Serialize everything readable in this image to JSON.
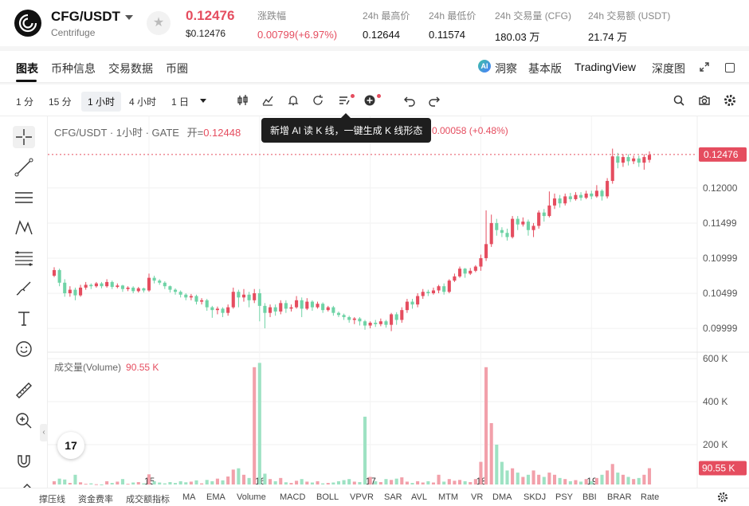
{
  "header": {
    "pair": "CFG/USDT",
    "pair_sub": "Centrifuge",
    "price": "0.12476",
    "price_usd": "$0.12476",
    "stats": [
      {
        "label": "涨跌幅",
        "value": "0.00799(+6.97%)",
        "red": true
      },
      {
        "label": "24h 最高价",
        "value": "0.12644",
        "red": false
      },
      {
        "label": "24h 最低价",
        "value": "0.11574",
        "red": false
      },
      {
        "label": "24h 交易量 (CFG)",
        "value": "180.03 万",
        "red": false
      },
      {
        "label": "24h 交易额 (USDT)",
        "value": "21.74 万",
        "red": false
      }
    ]
  },
  "tabs": {
    "left": [
      "图表",
      "币种信息",
      "交易数据",
      "币圈"
    ],
    "right": [
      "洞察",
      "基本版",
      "TradingView",
      "深度图"
    ]
  },
  "toolbar": {
    "timeframes": [
      "1 分",
      "15 分",
      "1 小时",
      "4 小时",
      "1 日"
    ],
    "active_timeframe": "1 小时"
  },
  "legend": {
    "symbol": "CFG/USDT · 1小时 · GATE",
    "open_label": "开=",
    "open_value": "0.12448",
    "change": "0.00058 (+0.48%)"
  },
  "tooltip": "新增 AI 读 K 线，一键生成 K 线形态",
  "volume_panel": {
    "title": "成交量(Volume)",
    "value": "90.55 K"
  },
  "indicators": [
    "撑压线",
    "资金费率",
    "成交额指标",
    "MA",
    "EMA",
    "Volume",
    "MACD",
    "BOLL",
    "VPVR",
    "SAR",
    "AVL",
    "MTM",
    "VR",
    "DMA",
    "SKDJ",
    "PSY",
    "BBI",
    "BRAR",
    "Rate"
  ],
  "colors": {
    "up": "#e54d5f",
    "down": "#6fd3a6",
    "up_vol": "#f2a0aa",
    "down_vol": "#9ee2c3"
  },
  "chart_data": {
    "type": "candlestick",
    "price_axis": {
      "ticks": [
        0.12,
        0.11499,
        0.10999,
        0.10499,
        0.09999
      ],
      "range": [
        0.0966,
        0.1302
      ]
    },
    "volume_axis": {
      "ticks": [
        "600 K",
        "400 K",
        "200 K"
      ],
      "range": [
        0,
        600000
      ]
    },
    "last_price": 0.12476,
    "last_price_label": "0.12476",
    "last_volume_label": "90.55 K",
    "x_ticks": [
      "15",
      "16",
      "17",
      "18",
      "19"
    ],
    "x_tick_index": [
      18,
      39,
      60,
      81,
      102
    ],
    "candles": [
      [
        0.1075,
        0.1083,
        0.1073,
        0.1087,
        30000
      ],
      [
        0.1083,
        0.1065,
        0.106,
        0.1085,
        42000
      ],
      [
        0.1065,
        0.105,
        0.1045,
        0.107,
        38000
      ],
      [
        0.105,
        0.1055,
        0.1045,
        0.106,
        22000
      ],
      [
        0.1055,
        0.1047,
        0.104,
        0.1058,
        60000
      ],
      [
        0.1047,
        0.1058,
        0.1045,
        0.1062,
        25000
      ],
      [
        0.1058,
        0.1062,
        0.1055,
        0.1066,
        18000
      ],
      [
        0.1062,
        0.106,
        0.1056,
        0.1064,
        20000
      ],
      [
        0.106,
        0.1064,
        0.1058,
        0.1066,
        16000
      ],
      [
        0.1064,
        0.106,
        0.1057,
        0.1066,
        15000
      ],
      [
        0.106,
        0.1066,
        0.1058,
        0.107,
        30000
      ],
      [
        0.1066,
        0.1059,
        0.1056,
        0.1068,
        22000
      ],
      [
        0.1059,
        0.1061,
        0.1057,
        0.1064,
        28000
      ],
      [
        0.1061,
        0.1056,
        0.1052,
        0.1062,
        40000
      ],
      [
        0.1056,
        0.1058,
        0.1053,
        0.106,
        18000
      ],
      [
        0.1058,
        0.1053,
        0.105,
        0.106,
        24000
      ],
      [
        0.1053,
        0.1057,
        0.1051,
        0.1059,
        26000
      ],
      [
        0.1057,
        0.1054,
        0.1051,
        0.1058,
        20000
      ],
      [
        0.1054,
        0.1072,
        0.1052,
        0.1078,
        62000
      ],
      [
        0.1072,
        0.1068,
        0.1064,
        0.1075,
        30000
      ],
      [
        0.1068,
        0.1065,
        0.1062,
        0.107,
        24000
      ],
      [
        0.1065,
        0.106,
        0.1056,
        0.1067,
        20000
      ],
      [
        0.106,
        0.1055,
        0.1051,
        0.1061,
        26000
      ],
      [
        0.1055,
        0.1052,
        0.1048,
        0.1057,
        22000
      ],
      [
        0.1052,
        0.1048,
        0.1044,
        0.1054,
        30000
      ],
      [
        0.1048,
        0.1044,
        0.104,
        0.105,
        25000
      ],
      [
        0.1044,
        0.1046,
        0.104,
        0.1049,
        28000
      ],
      [
        0.1046,
        0.1038,
        0.1034,
        0.1048,
        34000
      ],
      [
        0.1038,
        0.104,
        0.1034,
        0.1043,
        20000
      ],
      [
        0.104,
        0.103,
        0.1025,
        0.1042,
        36000
      ],
      [
        0.103,
        0.1026,
        0.1015,
        0.1032,
        30000
      ],
      [
        0.1026,
        0.1028,
        0.102,
        0.1031,
        42000
      ],
      [
        0.1028,
        0.1022,
        0.1016,
        0.103,
        34000
      ],
      [
        0.1022,
        0.103,
        0.1018,
        0.1034,
        52000
      ],
      [
        0.103,
        0.1052,
        0.1028,
        0.1058,
        84000
      ],
      [
        0.1052,
        0.1044,
        0.103,
        0.1055,
        90000
      ],
      [
        0.1044,
        0.1048,
        0.1038,
        0.1056,
        60000
      ],
      [
        0.1048,
        0.104,
        0.103,
        0.1052,
        45000
      ],
      [
        0.104,
        0.105,
        0.1036,
        0.1056,
        560000
      ],
      [
        0.105,
        0.1032,
        0.101,
        0.1056,
        580000
      ],
      [
        0.1032,
        0.1022,
        0.1,
        0.1036,
        65000
      ],
      [
        0.1022,
        0.103,
        0.1016,
        0.1034,
        40000
      ],
      [
        0.103,
        0.1024,
        0.1018,
        0.1034,
        30000
      ],
      [
        0.1024,
        0.1036,
        0.102,
        0.104,
        45000
      ],
      [
        0.1036,
        0.1028,
        0.1022,
        0.104,
        25000
      ],
      [
        0.1028,
        0.103,
        0.1024,
        0.1034,
        22000
      ],
      [
        0.103,
        0.104,
        0.1028,
        0.1046,
        32000
      ],
      [
        0.104,
        0.1028,
        0.1016,
        0.1044,
        40000
      ],
      [
        0.1028,
        0.1038,
        0.1026,
        0.1043,
        28000
      ],
      [
        0.1038,
        0.103,
        0.1025,
        0.104,
        24000
      ],
      [
        0.103,
        0.1035,
        0.1028,
        0.1038,
        30000
      ],
      [
        0.1035,
        0.1026,
        0.1022,
        0.1037,
        20000
      ],
      [
        0.1026,
        0.103,
        0.1024,
        0.1032,
        22000
      ],
      [
        0.103,
        0.1022,
        0.1018,
        0.1032,
        24000
      ],
      [
        0.1022,
        0.1019,
        0.1016,
        0.1024,
        30000
      ],
      [
        0.1019,
        0.1016,
        0.1012,
        0.1021,
        35000
      ],
      [
        0.1016,
        0.1012,
        0.1008,
        0.1018,
        40000
      ],
      [
        0.1012,
        0.1014,
        0.1006,
        0.1016,
        28000
      ],
      [
        0.1014,
        0.101,
        0.1004,
        0.1016,
        26000
      ],
      [
        0.101,
        0.1004,
        0.0998,
        0.1012,
        330000
      ],
      [
        0.1004,
        0.1008,
        0.1,
        0.101,
        50000
      ],
      [
        0.1008,
        0.1006,
        0.1002,
        0.1012,
        30000
      ],
      [
        0.1006,
        0.101,
        0.1003,
        0.1014,
        26000
      ],
      [
        0.101,
        0.1005,
        0.1001,
        0.1012,
        40000
      ],
      [
        0.1005,
        0.102,
        0.0996,
        0.1022,
        36000
      ],
      [
        0.102,
        0.1012,
        0.1005,
        0.1023,
        42000
      ],
      [
        0.1012,
        0.1026,
        0.1008,
        0.103,
        48000
      ],
      [
        0.1026,
        0.1038,
        0.1022,
        0.1042,
        28000
      ],
      [
        0.1038,
        0.1034,
        0.1028,
        0.1042,
        22000
      ],
      [
        0.1034,
        0.1046,
        0.103,
        0.105,
        30000
      ],
      [
        0.1046,
        0.1052,
        0.1042,
        0.1056,
        24000
      ],
      [
        0.1052,
        0.105,
        0.1046,
        0.1055,
        30000
      ],
      [
        0.105,
        0.1054,
        0.1048,
        0.1058,
        24000
      ],
      [
        0.1054,
        0.106,
        0.105,
        0.1062,
        60000
      ],
      [
        0.106,
        0.1052,
        0.1048,
        0.1064,
        28000
      ],
      [
        0.1052,
        0.1068,
        0.105,
        0.107,
        40000
      ],
      [
        0.1068,
        0.1074,
        0.1066,
        0.1078,
        32000
      ],
      [
        0.1074,
        0.1085,
        0.1072,
        0.1088,
        36000
      ],
      [
        0.1085,
        0.1078,
        0.1072,
        0.1086,
        30000
      ],
      [
        0.1078,
        0.1082,
        0.1076,
        0.1086,
        26000
      ],
      [
        0.1082,
        0.1088,
        0.108,
        0.109,
        40000
      ],
      [
        0.1088,
        0.11,
        0.1082,
        0.1105,
        120000
      ],
      [
        0.11,
        0.112,
        0.1096,
        0.1168,
        560000
      ],
      [
        0.112,
        0.115,
        0.1116,
        0.1162,
        300000
      ],
      [
        0.115,
        0.114,
        0.1132,
        0.1156,
        200000
      ],
      [
        0.114,
        0.1136,
        0.113,
        0.1144,
        120000
      ],
      [
        0.1136,
        0.113,
        0.1125,
        0.1142,
        80000
      ],
      [
        0.113,
        0.1156,
        0.1128,
        0.116,
        90000
      ],
      [
        0.1156,
        0.1148,
        0.114,
        0.116,
        70000
      ],
      [
        0.1148,
        0.1152,
        0.1145,
        0.1158,
        50000
      ],
      [
        0.1152,
        0.114,
        0.1132,
        0.1155,
        60000
      ],
      [
        0.114,
        0.1146,
        0.113,
        0.115,
        80000
      ],
      [
        0.1146,
        0.1165,
        0.1142,
        0.1168,
        60000
      ],
      [
        0.1165,
        0.116,
        0.1152,
        0.117,
        50000
      ],
      [
        0.116,
        0.1175,
        0.1158,
        0.1195,
        70000
      ],
      [
        0.1175,
        0.1185,
        0.117,
        0.1192,
        60000
      ],
      [
        0.1185,
        0.1178,
        0.1172,
        0.119,
        45000
      ],
      [
        0.1178,
        0.1188,
        0.1175,
        0.1192,
        40000
      ],
      [
        0.1188,
        0.1184,
        0.118,
        0.1193,
        30000
      ],
      [
        0.1184,
        0.119,
        0.1182,
        0.1194,
        35000
      ],
      [
        0.119,
        0.1186,
        0.1182,
        0.1194,
        28000
      ],
      [
        0.1186,
        0.1192,
        0.1184,
        0.1196,
        40000
      ],
      [
        0.1192,
        0.1188,
        0.1184,
        0.1196,
        30000
      ],
      [
        0.1188,
        0.1196,
        0.1186,
        0.1204,
        45000
      ],
      [
        0.1196,
        0.1188,
        0.1182,
        0.1198,
        60000
      ],
      [
        0.1188,
        0.121,
        0.1185,
        0.1214,
        80000
      ],
      [
        0.121,
        0.1245,
        0.1206,
        0.1256,
        110000
      ],
      [
        0.1245,
        0.1236,
        0.1228,
        0.125,
        70000
      ],
      [
        0.1236,
        0.1244,
        0.123,
        0.1248,
        60000
      ],
      [
        0.1244,
        0.1238,
        0.1232,
        0.1248,
        50000
      ],
      [
        0.1238,
        0.1242,
        0.1234,
        0.1246,
        40000
      ],
      [
        0.1242,
        0.1236,
        0.123,
        0.1246,
        45000
      ],
      [
        0.1236,
        0.1244,
        0.1226,
        0.1248,
        60000
      ],
      [
        0.124,
        0.1247,
        0.1236,
        0.1252,
        90550
      ]
    ]
  }
}
